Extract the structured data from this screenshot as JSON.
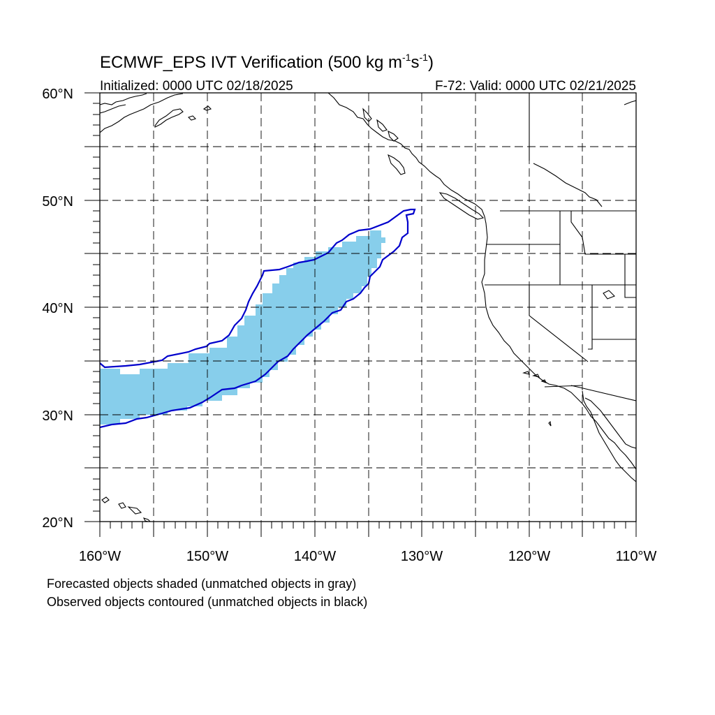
{
  "title": {
    "main": "ECMWF_EPS IVT Verification (500 kg m",
    "sup1": "-1",
    "mid": "s",
    "sup2": "-1",
    "end": ")"
  },
  "initialized": "Initialized: 0000 UTC 02/18/2025",
  "valid": "F-72: Valid: 0000 UTC 02/21/2025",
  "lat_labels": [
    {
      "lat": 60,
      "text": "60°N"
    },
    {
      "lat": 50,
      "text": "50°N"
    },
    {
      "lat": 40,
      "text": "40°N"
    },
    {
      "lat": 30,
      "text": "30°N"
    },
    {
      "lat": 20,
      "text": "20°N"
    }
  ],
  "lon_labels": [
    {
      "lon": -160,
      "text": "160°W"
    },
    {
      "lon": -150,
      "text": "150°W"
    },
    {
      "lon": -140,
      "text": "140°W"
    },
    {
      "lon": -130,
      "text": "130°W"
    },
    {
      "lon": -120,
      "text": "120°W"
    },
    {
      "lon": -110,
      "text": "110°W"
    }
  ],
  "legend": [
    "Forecasted objects shaded (unmatched objects in gray)",
    "Observed objects contoured (unmatched objects in black)"
  ],
  "extent": {
    "lon_min": -160,
    "lon_max": -110,
    "lat_min": 20,
    "lat_max": 60
  },
  "colors": {
    "forecast_fill": "#87ceeb",
    "observed_contour": "#0000cc",
    "coastline": "#000000",
    "grid": "#000000"
  }
}
